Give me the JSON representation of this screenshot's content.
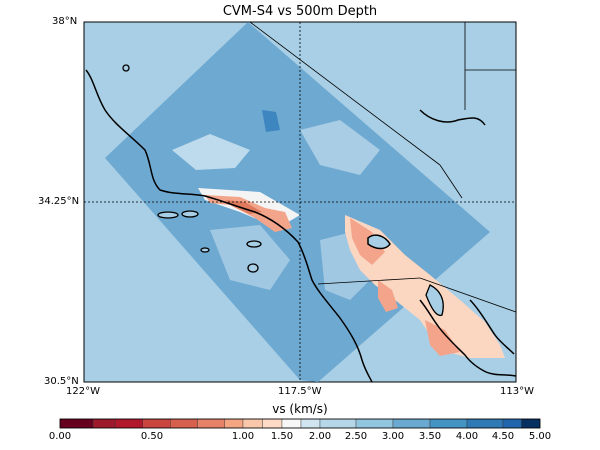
{
  "title": "CVM-S4 vs 500m Depth",
  "map": {
    "lat_labels": [
      "38°N",
      "34.25°N",
      "30.5°N"
    ],
    "lon_labels": [
      "122°W",
      "117.5°W",
      "113°W"
    ],
    "water_color": "#a8cfe5",
    "domain_color": "#6ea9d2"
  },
  "colorbar": {
    "title": "vs (km/s)",
    "tick_labels": [
      "0.00",
      "0.50",
      "1.00",
      "1.50",
      "2.00",
      "2.50",
      "3.00",
      "3.50",
      "4.00",
      "4.50",
      "5.00"
    ],
    "colors": [
      "#67001f",
      "#9c1a2b",
      "#b2182b",
      "#c9453d",
      "#d6604d",
      "#e58267",
      "#f4a582",
      "#f9c8ab",
      "#fddbc7",
      "#f7f7f7",
      "#d1e5f0",
      "#b6d7e8",
      "#92c5de",
      "#6aa9d0",
      "#4393c3",
      "#2f79b5",
      "#2166ac",
      "#053061"
    ]
  }
}
